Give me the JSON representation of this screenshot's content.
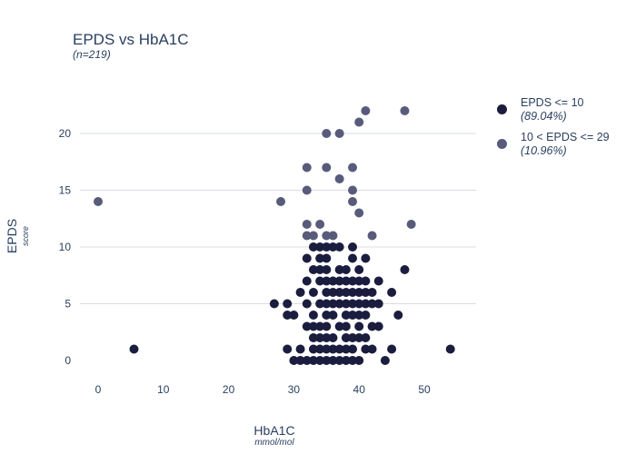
{
  "chart_data": {
    "type": "scatter",
    "title": "EPDS vs HbA1C",
    "subtitle": "(n=219)",
    "xlabel": "HbA1C",
    "xunit": "mmol/mol",
    "ylabel": "EPDS",
    "yunit": "score",
    "xlim": [
      -3,
      59
    ],
    "ylim": [
      -2,
      25
    ],
    "x_ticks": [
      0,
      10,
      20,
      30,
      40,
      50
    ],
    "y_ticks": [
      0,
      5,
      10,
      15,
      20
    ],
    "grid": "horizontal",
    "legend_position": "top-right",
    "series": [
      {
        "name": "EPDS <= 10",
        "share": "(89.04%)",
        "color": "#1b1d3f",
        "points": [
          [
            5.5,
            1
          ],
          [
            54,
            1
          ],
          [
            47,
            8
          ],
          [
            46,
            4
          ],
          [
            45,
            6
          ],
          [
            45,
            1
          ],
          [
            44,
            0
          ],
          [
            43,
            3
          ],
          [
            43,
            5
          ],
          [
            43,
            7
          ],
          [
            27,
            5
          ],
          [
            29,
            5
          ],
          [
            29,
            4
          ],
          [
            30,
            4
          ],
          [
            29,
            1
          ],
          [
            31,
            1
          ],
          [
            30,
            0
          ],
          [
            31,
            0
          ],
          [
            31,
            6
          ],
          [
            32,
            0
          ],
          [
            32,
            3
          ],
          [
            32,
            5
          ],
          [
            32,
            7
          ],
          [
            32,
            9
          ],
          [
            33,
            0
          ],
          [
            33,
            1
          ],
          [
            33,
            2
          ],
          [
            33,
            3
          ],
          [
            33,
            4
          ],
          [
            33,
            6
          ],
          [
            33,
            8
          ],
          [
            33,
            10
          ],
          [
            34,
            0
          ],
          [
            34,
            1
          ],
          [
            34,
            2
          ],
          [
            34,
            3
          ],
          [
            34,
            5
          ],
          [
            34,
            7
          ],
          [
            34,
            8
          ],
          [
            34,
            9
          ],
          [
            34,
            10
          ],
          [
            35,
            0
          ],
          [
            35,
            1
          ],
          [
            35,
            2
          ],
          [
            35,
            3
          ],
          [
            35,
            4
          ],
          [
            35,
            5
          ],
          [
            35,
            6
          ],
          [
            35,
            7
          ],
          [
            35,
            8
          ],
          [
            35,
            9
          ],
          [
            35,
            10
          ],
          [
            36,
            0
          ],
          [
            36,
            1
          ],
          [
            36,
            2
          ],
          [
            36,
            4
          ],
          [
            36,
            5
          ],
          [
            36,
            6
          ],
          [
            36,
            7
          ],
          [
            36,
            10
          ],
          [
            37,
            0
          ],
          [
            37,
            1
          ],
          [
            37,
            3
          ],
          [
            37,
            5
          ],
          [
            37,
            6
          ],
          [
            37,
            7
          ],
          [
            37,
            8
          ],
          [
            37,
            10
          ],
          [
            38,
            0
          ],
          [
            38,
            1
          ],
          [
            38,
            2
          ],
          [
            38,
            3
          ],
          [
            38,
            4
          ],
          [
            38,
            5
          ],
          [
            38,
            6
          ],
          [
            38,
            7
          ],
          [
            38,
            8
          ],
          [
            39,
            0
          ],
          [
            39,
            1
          ],
          [
            39,
            2
          ],
          [
            39,
            4
          ],
          [
            39,
            5
          ],
          [
            39,
            6
          ],
          [
            39,
            7
          ],
          [
            39,
            9
          ],
          [
            39,
            10
          ],
          [
            40,
            0
          ],
          [
            40,
            2
          ],
          [
            40,
            3
          ],
          [
            40,
            4
          ],
          [
            40,
            5
          ],
          [
            40,
            6
          ],
          [
            40,
            7
          ],
          [
            40,
            8
          ],
          [
            41,
            1
          ],
          [
            41,
            2
          ],
          [
            41,
            4
          ],
          [
            41,
            5
          ],
          [
            41,
            6
          ],
          [
            41,
            7
          ],
          [
            41,
            9
          ],
          [
            42,
            1
          ],
          [
            42,
            3
          ],
          [
            42,
            5
          ],
          [
            42,
            6
          ]
        ]
      },
      {
        "name": "10 < EPDS <= 29",
        "share": "(10.96%)",
        "color": "#585b7a",
        "points": [
          [
            0,
            14
          ],
          [
            28,
            14
          ],
          [
            32,
            11
          ],
          [
            32,
            12
          ],
          [
            32,
            15
          ],
          [
            32,
            17
          ],
          [
            33,
            11
          ],
          [
            34,
            12
          ],
          [
            35,
            11
          ],
          [
            35,
            17
          ],
          [
            35,
            20
          ],
          [
            36,
            11
          ],
          [
            37,
            16
          ],
          [
            37,
            20
          ],
          [
            39,
            14
          ],
          [
            39,
            15
          ],
          [
            39,
            17
          ],
          [
            40,
            13
          ],
          [
            40,
            21
          ],
          [
            41,
            22
          ],
          [
            42,
            11
          ],
          [
            47,
            22
          ],
          [
            48,
            12
          ]
        ]
      }
    ]
  }
}
